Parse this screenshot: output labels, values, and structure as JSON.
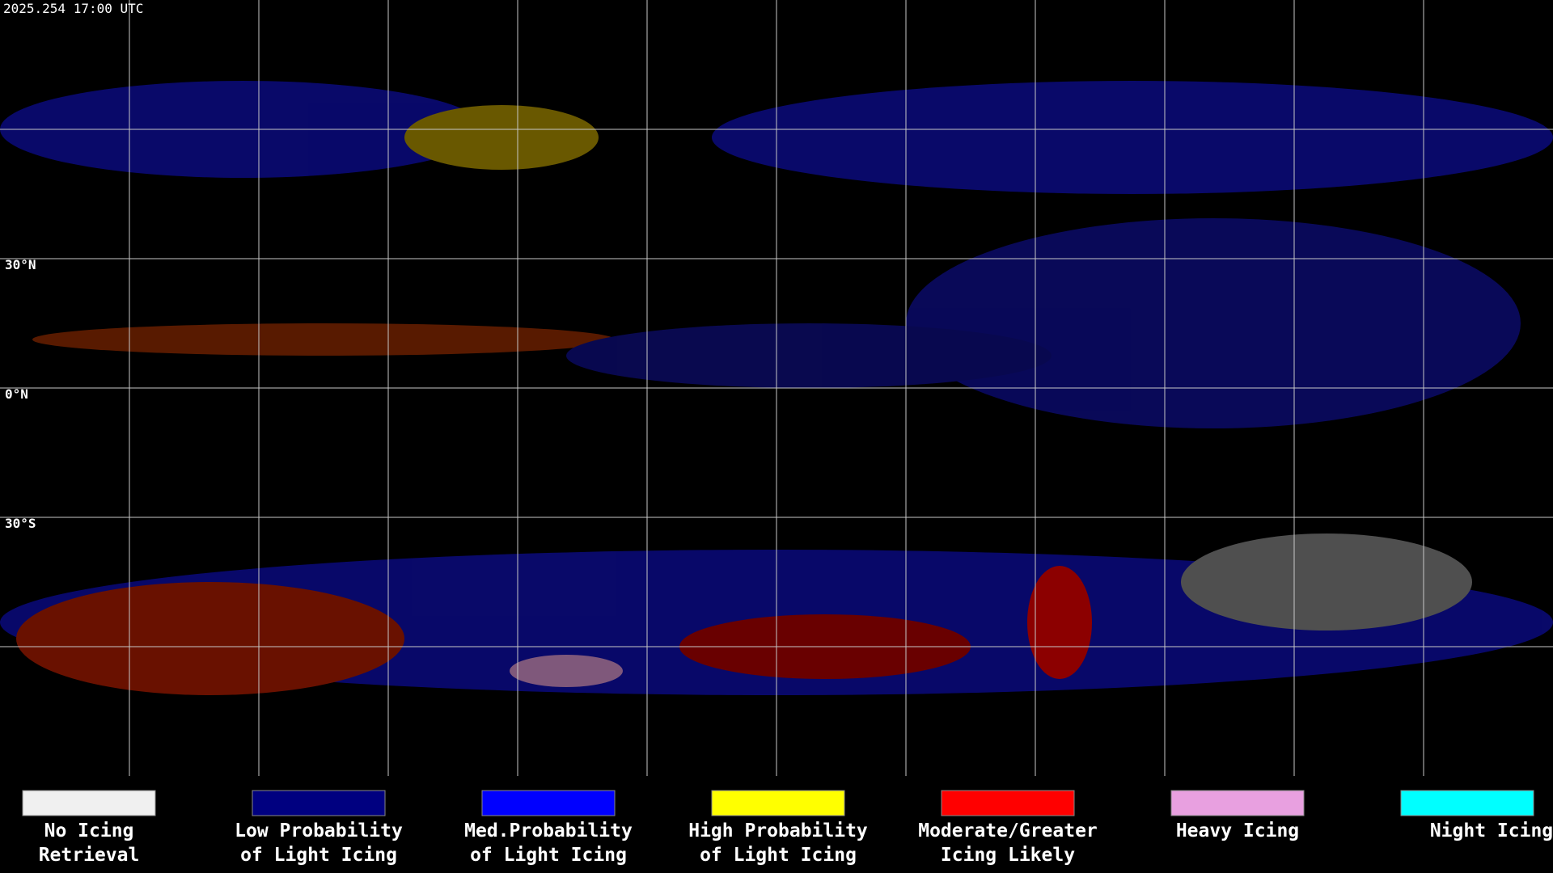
{
  "timestamp": "2025.254 17:00 UTC",
  "lat_labels": [
    "30°N",
    "0°N",
    "30°S"
  ],
  "legend": [
    {
      "lines": [
        "No Icing",
        "Retrieval"
      ],
      "color": "#f0f0f0"
    },
    {
      "lines": [
        "Low Probability",
        "of Light Icing"
      ],
      "color": "#000080"
    },
    {
      "lines": [
        "Med.Probability",
        "of Light Icing"
      ],
      "color": "#0000ff"
    },
    {
      "lines": [
        "High Probability",
        "of Light Icing"
      ],
      "color": "#ffff00"
    },
    {
      "lines": [
        "Moderate/Greater",
        "Icing Likely"
      ],
      "color": "#ff0000"
    },
    {
      "lines": [
        "Heavy Icing"
      ],
      "color": "#e8a0e0"
    },
    {
      "lines": [
        "Night Icing"
      ],
      "color": "#00ffff"
    }
  ]
}
